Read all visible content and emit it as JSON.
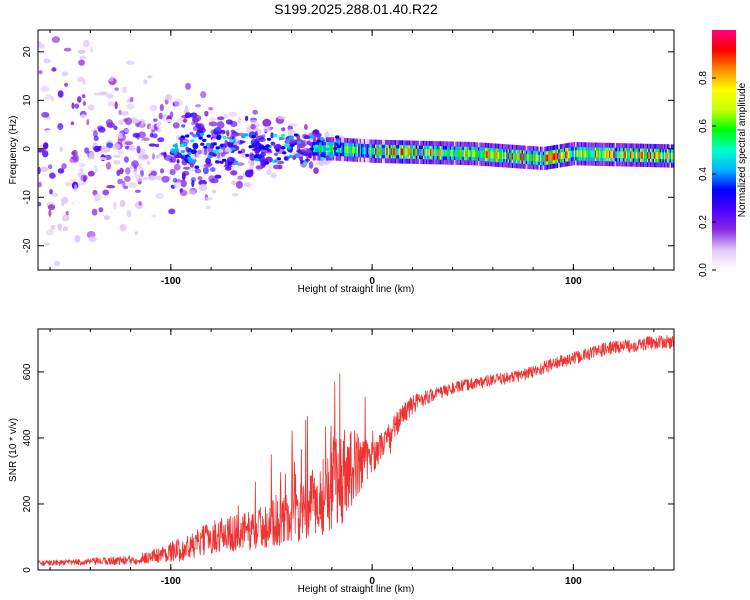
{
  "title": "S199.2025.288.01.40.R22",
  "chart_data": [
    {
      "type": "heatmap",
      "xlabel": "Height of straight line (km)",
      "ylabel": "Frequency (Hz)",
      "xlim": [
        -166,
        150
      ],
      "ylim": [
        -25,
        24.5
      ],
      "xticks": [
        -100,
        0,
        100
      ],
      "xtick_labels": [
        "-100",
        "0",
        "100"
      ],
      "yticks": [
        -20,
        -10,
        0,
        10,
        20
      ],
      "ytick_labels": [
        "-20",
        "-10",
        "0",
        "10",
        "20"
      ],
      "trend": [
        {
          "x": -166,
          "f_center": 0,
          "f_spread": 24
        },
        {
          "x": -120,
          "f_center": 0,
          "f_spread": 12
        },
        {
          "x": -80,
          "f_center": 0,
          "f_spread": 7
        },
        {
          "x": -40,
          "f_center": 0,
          "f_spread": 4
        },
        {
          "x": -20,
          "f_center": 0,
          "f_spread": 2
        },
        {
          "x": 0,
          "f_center": -0.5,
          "f_spread": 0.8
        },
        {
          "x": 50,
          "f_center": -1,
          "f_spread": 0.6
        },
        {
          "x": 85,
          "f_center": -2,
          "f_spread": 0.6
        },
        {
          "x": 100,
          "f_center": -1,
          "f_spread": 0.6
        },
        {
          "x": 150,
          "f_center": -1.5,
          "f_spread": 0.6
        }
      ],
      "colorbar": {
        "label": "Normalized spectral amplitude",
        "range": [
          0,
          1
        ],
        "ticks": [
          0.0,
          0.2,
          0.4,
          0.6,
          0.8
        ],
        "tick_labels": [
          "0.0",
          "0.2",
          "0.4",
          "0.6",
          "0.8"
        ],
        "colors": [
          "#ffffff",
          "#e0c8f8",
          "#8a2be2",
          "#4b00ff",
          "#0000ff",
          "#00b4ff",
          "#00ffcc",
          "#00ff00",
          "#c8ff00",
          "#ffff00",
          "#ff8c00",
          "#ff0000",
          "#ff0080"
        ]
      }
    },
    {
      "type": "line",
      "xlabel": "Height of straight line (km)",
      "ylabel": "SNR (10 * v/v)",
      "xlim": [
        -166,
        150
      ],
      "ylim": [
        0,
        730
      ],
      "xticks": [
        -100,
        0,
        100
      ],
      "xtick_labels": [
        "-100",
        "0",
        "100"
      ],
      "yticks": [
        0,
        200,
        400,
        600
      ],
      "ytick_labels": [
        "0",
        "200",
        "400",
        "600"
      ],
      "color": "#ee3333",
      "series": [
        {
          "name": "SNR",
          "x": [
            -166,
            -140,
            -120,
            -110,
            -100,
            -90,
            -80,
            -70,
            -60,
            -50,
            -40,
            -30,
            -25,
            -20,
            -15,
            -10,
            -5,
            0,
            5,
            10,
            15,
            20,
            25,
            30,
            40,
            50,
            60,
            70,
            80,
            90,
            100,
            110,
            120,
            130,
            140,
            150
          ],
          "y": [
            20,
            25,
            30,
            40,
            55,
            70,
            100,
            110,
            120,
            140,
            160,
            190,
            220,
            260,
            290,
            310,
            330,
            340,
            380,
            420,
            470,
            500,
            520,
            530,
            550,
            565,
            575,
            585,
            600,
            625,
            640,
            660,
            675,
            680,
            690,
            690
          ],
          "noise": [
            8,
            10,
            15,
            20,
            30,
            40,
            50,
            55,
            60,
            70,
            80,
            100,
            120,
            140,
            150,
            120,
            80,
            50,
            40,
            40,
            35,
            30,
            25,
            20,
            18,
            18,
            18,
            18,
            20,
            20,
            20,
            20,
            20,
            20,
            20,
            20
          ]
        }
      ]
    }
  ]
}
